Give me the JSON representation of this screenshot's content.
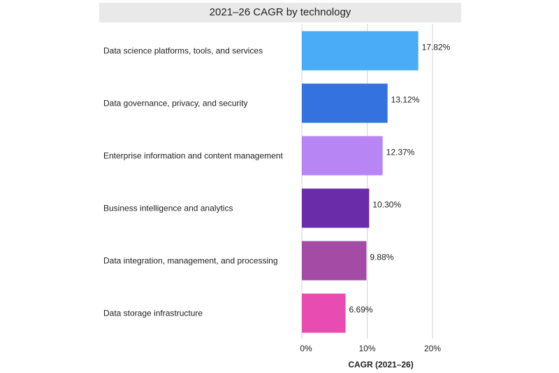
{
  "chart_data": {
    "type": "bar",
    "orientation": "horizontal",
    "title": "2021–26 CAGR by technology",
    "xlabel": "CAGR (2021–26)",
    "ylabel": "",
    "xlim": [
      0,
      20
    ],
    "xticks": [
      0,
      10,
      20
    ],
    "xtick_labels": [
      "0%",
      "10%",
      "20%"
    ],
    "grid": true,
    "categories": [
      "Data science platforms, tools, and services",
      "Data governance, privacy, and security",
      "Enterprise information and content management",
      "Business intelligence and analytics",
      "Data integration, management, and processing",
      "Data storage infrastructure"
    ],
    "values": [
      17.82,
      13.12,
      12.37,
      10.3,
      9.88,
      6.69
    ],
    "value_labels": [
      "17.82%",
      "13.12%",
      "12.37%",
      "10.30%",
      "9.88%",
      "6.69%"
    ],
    "colors": [
      "#4aabf7",
      "#3472df",
      "#b886f4",
      "#6a2ca8",
      "#a34ba5",
      "#e94cb0"
    ]
  }
}
